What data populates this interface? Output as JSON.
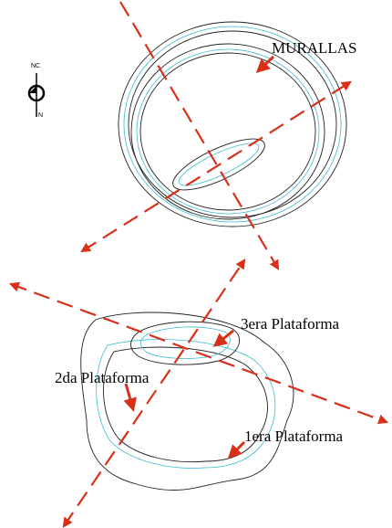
{
  "labels": {
    "murallas": "MURALLAS",
    "compass_nc": "NC",
    "compass_n": "N",
    "platform_3": "3era Plataforma",
    "platform_2": "2da Plataforma",
    "platform_1": "1era Plataforma"
  }
}
